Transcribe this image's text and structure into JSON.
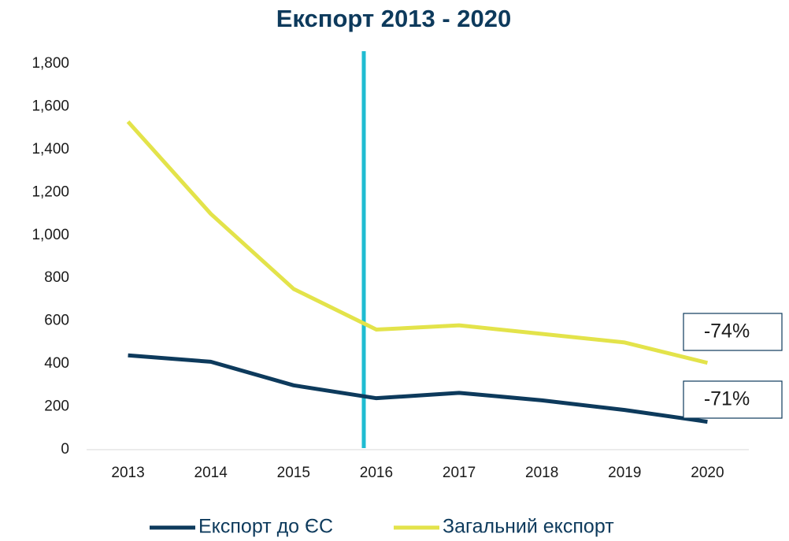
{
  "chart_data": {
    "type": "line",
    "title": "Експорт 2013 - 2020",
    "categories": [
      "2013",
      "2014",
      "2015",
      "2016",
      "2017",
      "2018",
      "2019",
      "2020"
    ],
    "series": [
      {
        "name": "Експорт до ЄС",
        "color": "#0d3a5c",
        "values": [
          440,
          410,
          300,
          240,
          265,
          230,
          185,
          130
        ]
      },
      {
        "name": "Загальний експорт",
        "color": "#e3e34a",
        "values": [
          1530,
          1100,
          750,
          560,
          580,
          540,
          500,
          405
        ]
      }
    ],
    "ylim": [
      0,
      1800
    ],
    "yticks": [
      0,
      200,
      400,
      600,
      800,
      {
        "value": 1000,
        "label": "1,000"
      },
      {
        "value": 1200,
        "label": "1,200"
      },
      {
        "value": 1400,
        "label": "1,400"
      },
      {
        "value": 1600,
        "label": "1,600"
      },
      {
        "value": 1800,
        "label": "1,800"
      }
    ],
    "annotations": [
      "-74%",
      "-71%"
    ],
    "legend": "bottom"
  }
}
